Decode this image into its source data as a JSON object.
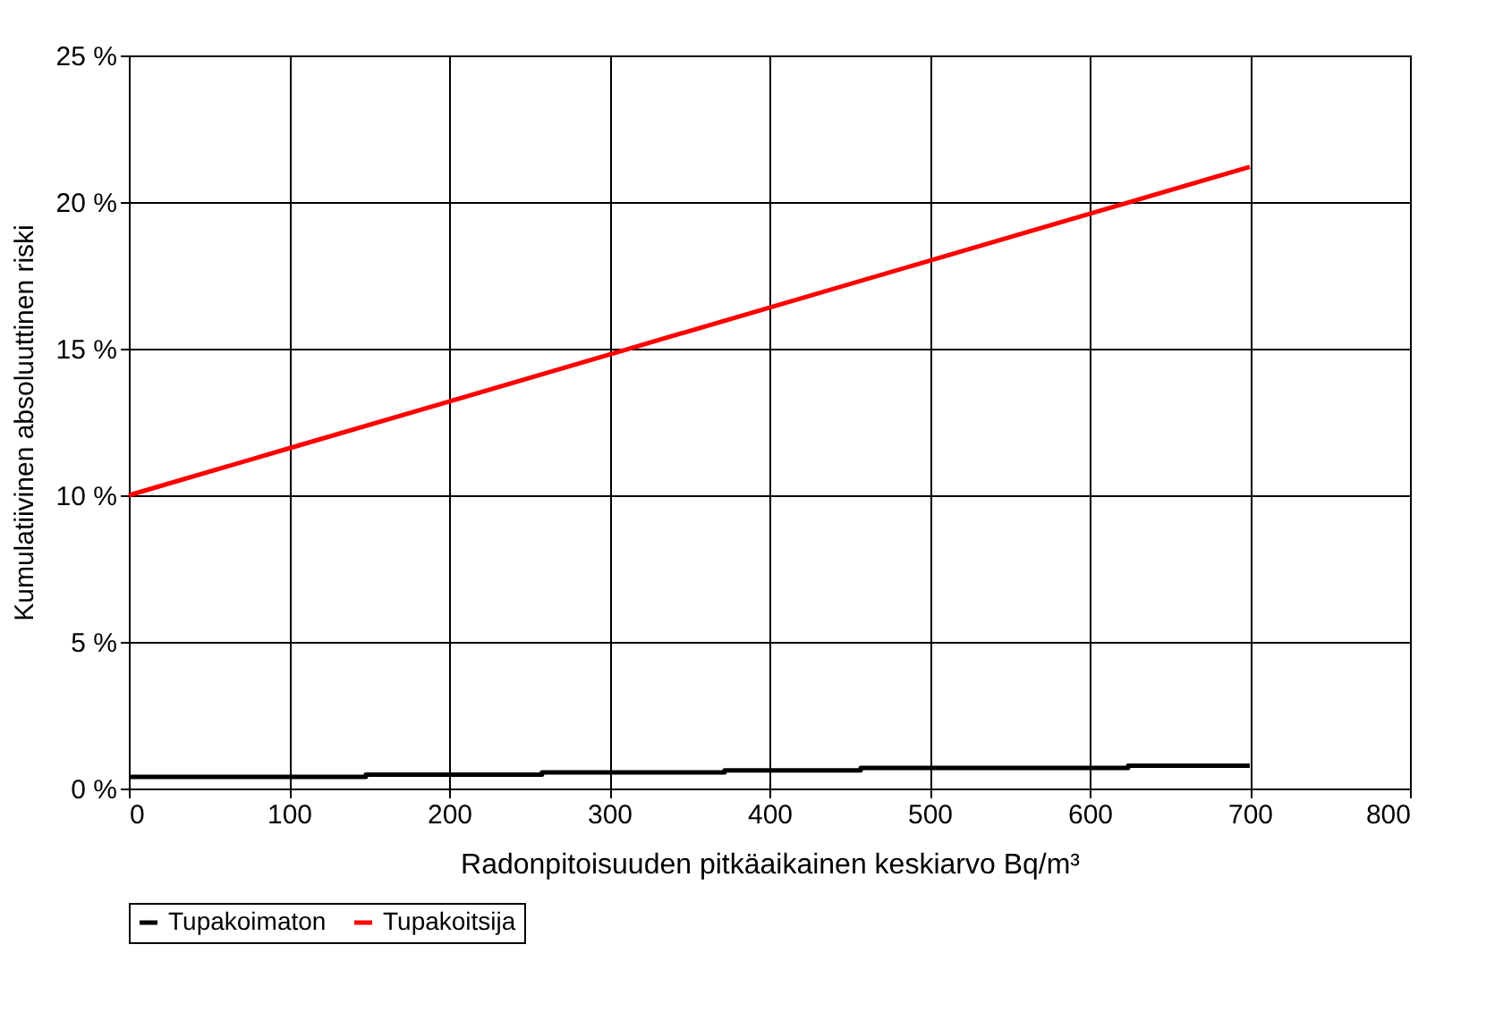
{
  "chart_data": {
    "type": "line",
    "xlabel": "Radonpitoisuuden pitkäaikainen keskiarvo Bq/m³",
    "ylabel": "Kumulatiivinen absoluuttinen riski",
    "series": [
      {
        "name": "Tupakoimaton",
        "color": "#000000",
        "type": "step",
        "x": [
          0,
          148,
          258,
          372,
          457,
          624,
          700
        ],
        "values": [
          0.4,
          0.47,
          0.55,
          0.62,
          0.7,
          0.78,
          0.78
        ]
      },
      {
        "name": "Tupakoitsija",
        "color": "#ff0000",
        "x": [
          0,
          100,
          200,
          300,
          400,
          500,
          600,
          700
        ],
        "values": [
          10,
          11.6,
          13.2,
          14.8,
          16.4,
          18.0,
          19.6,
          21.2
        ]
      }
    ],
    "xlim": [
      0,
      800
    ],
    "xticks": [
      0,
      100,
      200,
      300,
      400,
      500,
      600,
      700,
      800
    ],
    "ylim": [
      0,
      25
    ],
    "yticks": [
      {
        "value": 0,
        "label": "0 %"
      },
      {
        "value": 5,
        "label": "5 %"
      },
      {
        "value": 10,
        "label": "10 %"
      },
      {
        "value": 15,
        "label": "15 %"
      },
      {
        "value": 20,
        "label": "20 %"
      },
      {
        "value": 25,
        "label": "25 %"
      }
    ],
    "grid": true,
    "legend": "bottom",
    "line_style": "solid",
    "marker": "none"
  }
}
